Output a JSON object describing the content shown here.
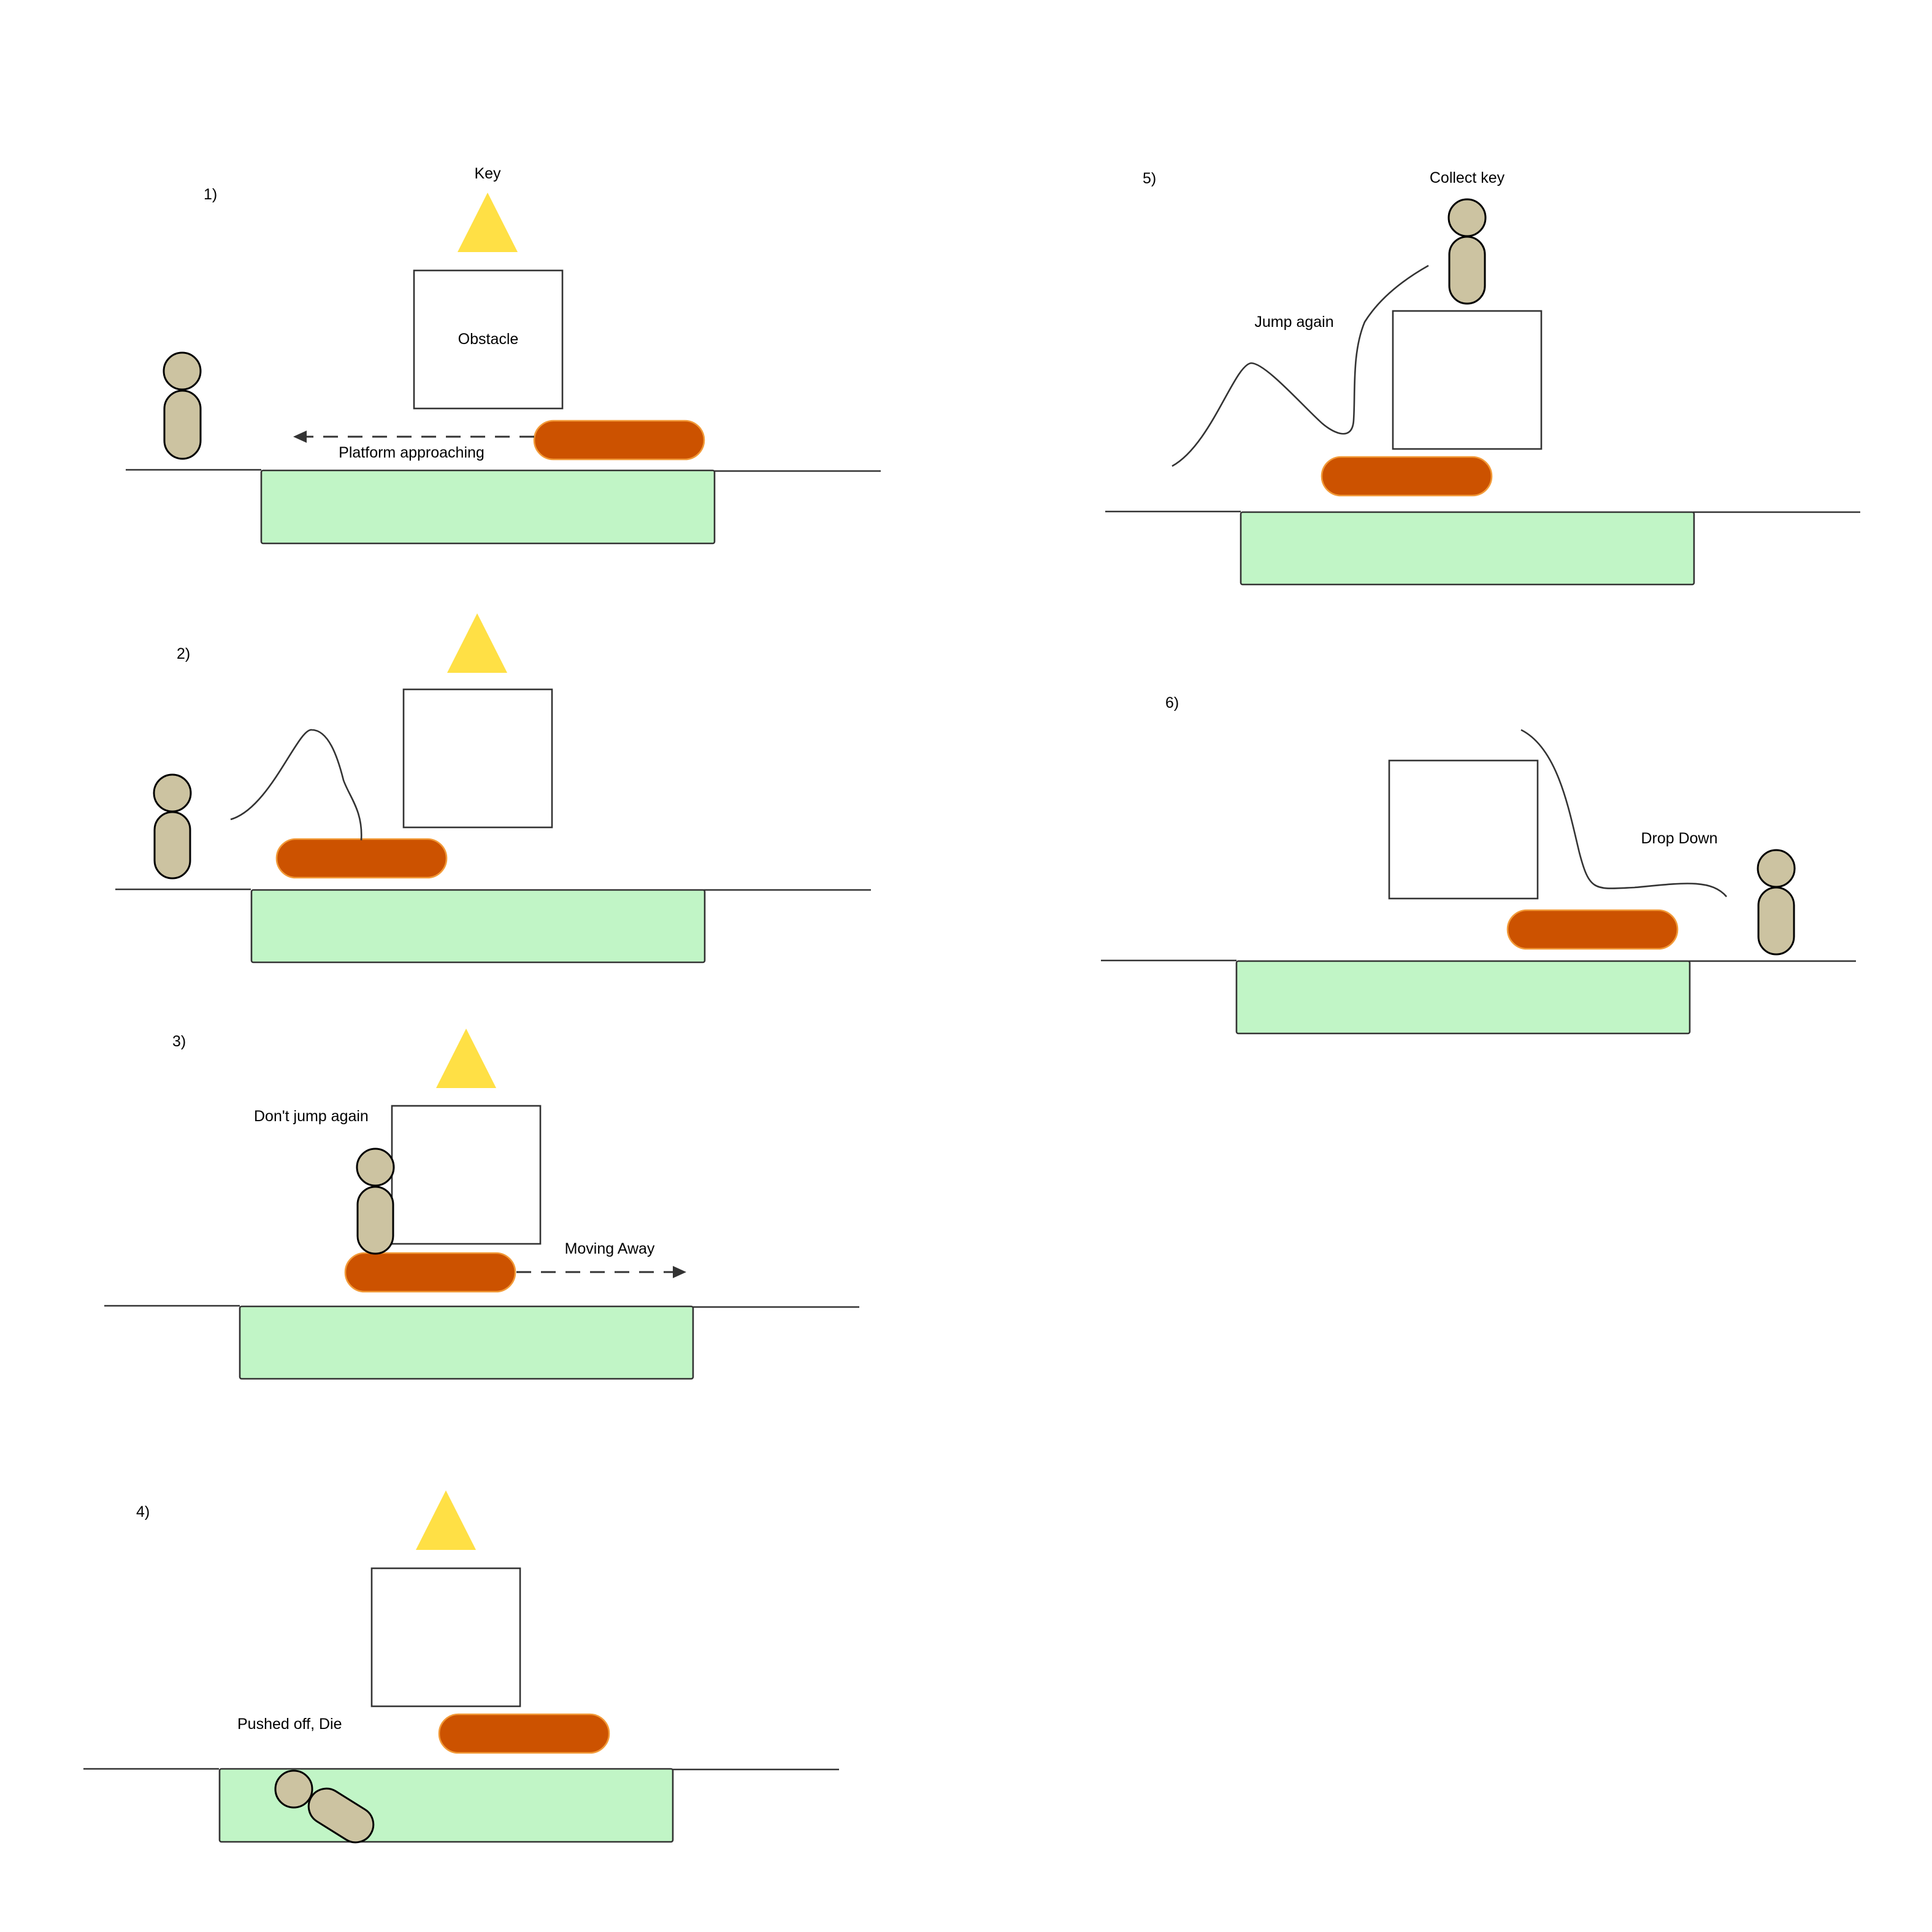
{
  "panels": [
    {
      "number": "1)",
      "labels": {
        "key": "Key",
        "obstacle": "Obstacle",
        "motion": "Platform approaching"
      }
    },
    {
      "number": "2)"
    },
    {
      "number": "3)",
      "labels": {
        "note": "Don't jump again",
        "motion": "Moving Away"
      }
    },
    {
      "number": "4)",
      "labels": {
        "note": "Pushed off, Die"
      }
    },
    {
      "number": "5)",
      "labels": {
        "goal": "Collect key",
        "note": "Jump again"
      }
    },
    {
      "number": "6)",
      "labels": {
        "note": "Drop Down"
      }
    }
  ],
  "colors": {
    "pit": "#c1f5c6",
    "platform": "#cc5200",
    "platform_outline": "#f29a38",
    "key": "#ffe045",
    "character": "#ccc3a1",
    "line": "#333333"
  },
  "icons": {
    "key": "yellow-triangle",
    "character": "capsule-figure",
    "obstacle": "square-box",
    "platform": "rounded-bar"
  }
}
